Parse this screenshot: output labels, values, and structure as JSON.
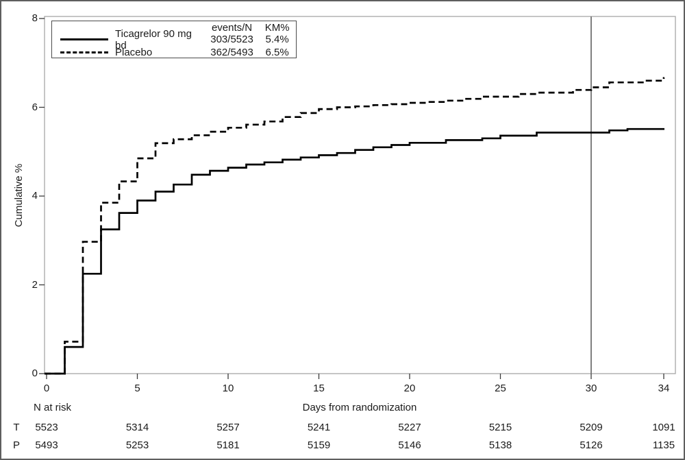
{
  "chart_data": {
    "type": "line",
    "subtype": "kaplan-meier-step",
    "xlabel": "Days from randomization",
    "ylabel": "Cumulative %",
    "xlim": [
      0,
      34
    ],
    "ylim": [
      0,
      8
    ],
    "xticks": [
      0,
      5,
      10,
      15,
      20,
      25,
      30,
      34
    ],
    "yticks": [
      0,
      2,
      4,
      6,
      8
    ],
    "grid": false,
    "reference_line_x": 30,
    "legend": {
      "position": "top-left-inside",
      "col_headers": [
        "events/N",
        "KM%"
      ],
      "entries": [
        {
          "name": "Ticagrelor 90 mg bd",
          "line": "solid",
          "events_n": "303/5523",
          "km_pct": "5.4%"
        },
        {
          "name": "Placebo",
          "line": "dashed",
          "events_n": "362/5493",
          "km_pct": "6.5%"
        }
      ]
    },
    "series": [
      {
        "name": "Ticagrelor 90 mg bd",
        "style": "solid",
        "points": [
          [
            0,
            0
          ],
          [
            1,
            0.6
          ],
          [
            2,
            2.25
          ],
          [
            3,
            3.25
          ],
          [
            4,
            3.62
          ],
          [
            5,
            3.9
          ],
          [
            6,
            4.1
          ],
          [
            7,
            4.26
          ],
          [
            8,
            4.48
          ],
          [
            9,
            4.57
          ],
          [
            10,
            4.64
          ],
          [
            11,
            4.71
          ],
          [
            12,
            4.76
          ],
          [
            13,
            4.82
          ],
          [
            14,
            4.87
          ],
          [
            15,
            4.92
          ],
          [
            16,
            4.97
          ],
          [
            17,
            5.04
          ],
          [
            18,
            5.1
          ],
          [
            19,
            5.15
          ],
          [
            20,
            5.2
          ],
          [
            22,
            5.26
          ],
          [
            24,
            5.3
          ],
          [
            25,
            5.36
          ],
          [
            27,
            5.43
          ],
          [
            31,
            5.48
          ],
          [
            32,
            5.51
          ],
          [
            34,
            5.51
          ]
        ]
      },
      {
        "name": "Placebo",
        "style": "dashed",
        "points": [
          [
            0,
            0
          ],
          [
            1,
            0.72
          ],
          [
            2,
            2.97
          ],
          [
            3,
            3.85
          ],
          [
            4,
            4.33
          ],
          [
            5,
            4.85
          ],
          [
            6,
            5.19
          ],
          [
            7,
            5.28
          ],
          [
            8,
            5.37
          ],
          [
            9,
            5.45
          ],
          [
            10,
            5.54
          ],
          [
            11,
            5.61
          ],
          [
            12,
            5.68
          ],
          [
            13,
            5.78
          ],
          [
            14,
            5.87
          ],
          [
            15,
            5.96
          ],
          [
            16,
            6.0
          ],
          [
            17,
            6.02
          ],
          [
            18,
            6.05
          ],
          [
            19,
            6.07
          ],
          [
            20,
            6.1
          ],
          [
            21,
            6.12
          ],
          [
            22,
            6.15
          ],
          [
            23,
            6.19
          ],
          [
            24,
            6.24
          ],
          [
            26,
            6.3
          ],
          [
            27,
            6.33
          ],
          [
            29,
            6.39
          ],
          [
            30,
            6.45
          ],
          [
            31,
            6.56
          ],
          [
            33,
            6.6
          ],
          [
            34,
            6.66
          ]
        ]
      }
    ],
    "n_at_risk": {
      "title": "N at risk",
      "days": [
        0,
        5,
        10,
        15,
        20,
        25,
        30,
        34
      ],
      "rows": [
        {
          "label": "T",
          "values": [
            "5523",
            "5314",
            "5257",
            "5241",
            "5227",
            "5215",
            "5209",
            "1091"
          ]
        },
        {
          "label": "P",
          "values": [
            "5493",
            "5253",
            "5181",
            "5159",
            "5146",
            "5138",
            "5126",
            "1135"
          ]
        }
      ]
    },
    "colors": {
      "line": "#000000",
      "frame": "#a6a6a6",
      "reference_line": "#7f7f7f",
      "text": "#1a1a1a"
    }
  }
}
